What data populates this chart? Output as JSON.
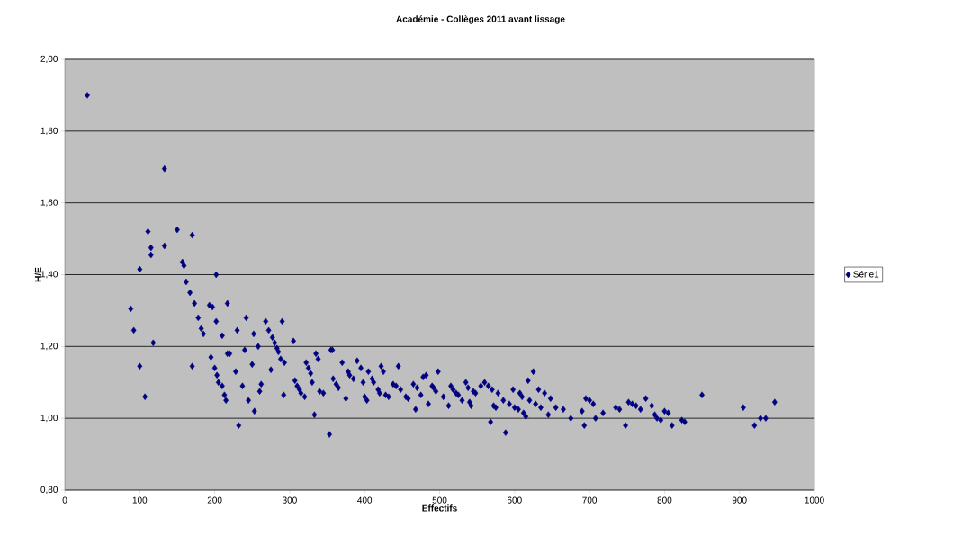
{
  "chart_data": {
    "type": "scatter",
    "title": "Académie - Collèges 2011 avant lissage",
    "xlabel": "Effectifs",
    "ylabel": "H/E",
    "xlim": [
      0,
      1000
    ],
    "xticks": [
      0,
      100,
      200,
      300,
      400,
      500,
      600,
      700,
      800,
      900,
      1000
    ],
    "ylim": [
      0.8,
      2.0
    ],
    "yticks": [
      {
        "value": 0.8,
        "label": "0,80"
      },
      {
        "value": 1.0,
        "label": "1,00"
      },
      {
        "value": 1.2,
        "label": "1,20"
      },
      {
        "value": 1.4,
        "label": "1,40"
      },
      {
        "value": 1.6,
        "label": "1,60"
      },
      {
        "value": 1.8,
        "label": "1,80"
      },
      {
        "value": 2.0,
        "label": "2,00"
      }
    ],
    "grid": "y",
    "legend": "right",
    "marker": "diamond",
    "series": [
      {
        "name": "Série1",
        "color": "#000080",
        "x": [
          30,
          88,
          92,
          100,
          100,
          107,
          111,
          115,
          115,
          118,
          133,
          133,
          150,
          157,
          159,
          162,
          167,
          170,
          170,
          173,
          178,
          182,
          185,
          193,
          195,
          197,
          200,
          202,
          202,
          203,
          205,
          210,
          210,
          213,
          215,
          217,
          217,
          220,
          228,
          230,
          232,
          237,
          240,
          242,
          245,
          250,
          252,
          253,
          258,
          260,
          262,
          268,
          272,
          275,
          277,
          280,
          283,
          285,
          288,
          290,
          292,
          293,
          305,
          307,
          310,
          313,
          315,
          320,
          322,
          325,
          328,
          330,
          333,
          335,
          338,
          340,
          345,
          353,
          355,
          357,
          358,
          362,
          365,
          370,
          375,
          378,
          380,
          385,
          390,
          395,
          398,
          400,
          403,
          405,
          410,
          412,
          418,
          420,
          422,
          425,
          428,
          432,
          438,
          442,
          445,
          448,
          455,
          458,
          465,
          468,
          470,
          475,
          478,
          482,
          485,
          490,
          492,
          495,
          498,
          505,
          512,
          515,
          518,
          522,
          525,
          530,
          535,
          538,
          540,
          542,
          545,
          548,
          555,
          560,
          565,
          568,
          570,
          572,
          575,
          578,
          585,
          588,
          593,
          598,
          600,
          605,
          607,
          610,
          612,
          615,
          618,
          620,
          625,
          628,
          632,
          635,
          640,
          645,
          648,
          655,
          665,
          675,
          690,
          693,
          695,
          700,
          705,
          708,
          718,
          735,
          740,
          748,
          752,
          757,
          762,
          768,
          775,
          783,
          787,
          790,
          795,
          800,
          805,
          810,
          823,
          827,
          850,
          905,
          920,
          928,
          935,
          947
        ],
        "values": [
          1.9,
          1.305,
          1.245,
          1.415,
          1.145,
          1.06,
          1.52,
          1.455,
          1.475,
          1.21,
          1.695,
          1.48,
          1.525,
          1.435,
          1.425,
          1.38,
          1.35,
          1.51,
          1.145,
          1.32,
          1.28,
          1.25,
          1.235,
          1.315,
          1.17,
          1.31,
          1.14,
          1.27,
          1.4,
          1.12,
          1.1,
          1.23,
          1.09,
          1.065,
          1.05,
          1.32,
          1.18,
          1.18,
          1.13,
          1.245,
          0.98,
          1.09,
          1.19,
          1.28,
          1.05,
          1.15,
          1.235,
          1.02,
          1.2,
          1.075,
          1.095,
          1.27,
          1.245,
          1.135,
          1.225,
          1.21,
          1.195,
          1.185,
          1.165,
          1.27,
          1.065,
          1.155,
          1.215,
          1.105,
          1.09,
          1.08,
          1.07,
          1.06,
          1.155,
          1.14,
          1.125,
          1.1,
          1.01,
          1.18,
          1.165,
          1.075,
          1.07,
          0.955,
          1.19,
          1.19,
          1.11,
          1.095,
          1.085,
          1.155,
          1.055,
          1.13,
          1.12,
          1.11,
          1.16,
          1.14,
          1.1,
          1.06,
          1.05,
          1.13,
          1.11,
          1.1,
          1.08,
          1.07,
          1.145,
          1.13,
          1.065,
          1.06,
          1.095,
          1.09,
          1.145,
          1.08,
          1.06,
          1.055,
          1.095,
          1.025,
          1.085,
          1.065,
          1.115,
          1.12,
          1.04,
          1.09,
          1.085,
          1.075,
          1.13,
          1.06,
          1.035,
          1.09,
          1.08,
          1.07,
          1.065,
          1.05,
          1.1,
          1.085,
          1.045,
          1.035,
          1.075,
          1.07,
          1.09,
          1.1,
          1.09,
          0.99,
          1.08,
          1.035,
          1.03,
          1.07,
          1.05,
          0.96,
          1.04,
          1.08,
          1.03,
          1.025,
          1.07,
          1.06,
          1.015,
          1.005,
          1.105,
          1.05,
          1.13,
          1.04,
          1.08,
          1.03,
          1.07,
          1.01,
          1.055,
          1.03,
          1.025,
          1.0,
          1.02,
          0.98,
          1.055,
          1.05,
          1.04,
          1.0,
          1.015,
          1.03,
          1.025,
          0.98,
          1.045,
          1.04,
          1.035,
          1.025,
          1.055,
          1.035,
          1.01,
          1.0,
          0.995,
          1.02,
          1.015,
          0.98,
          0.995,
          0.99,
          1.065,
          1.03,
          0.98,
          1.0,
          1.0,
          1.045
        ]
      }
    ]
  }
}
